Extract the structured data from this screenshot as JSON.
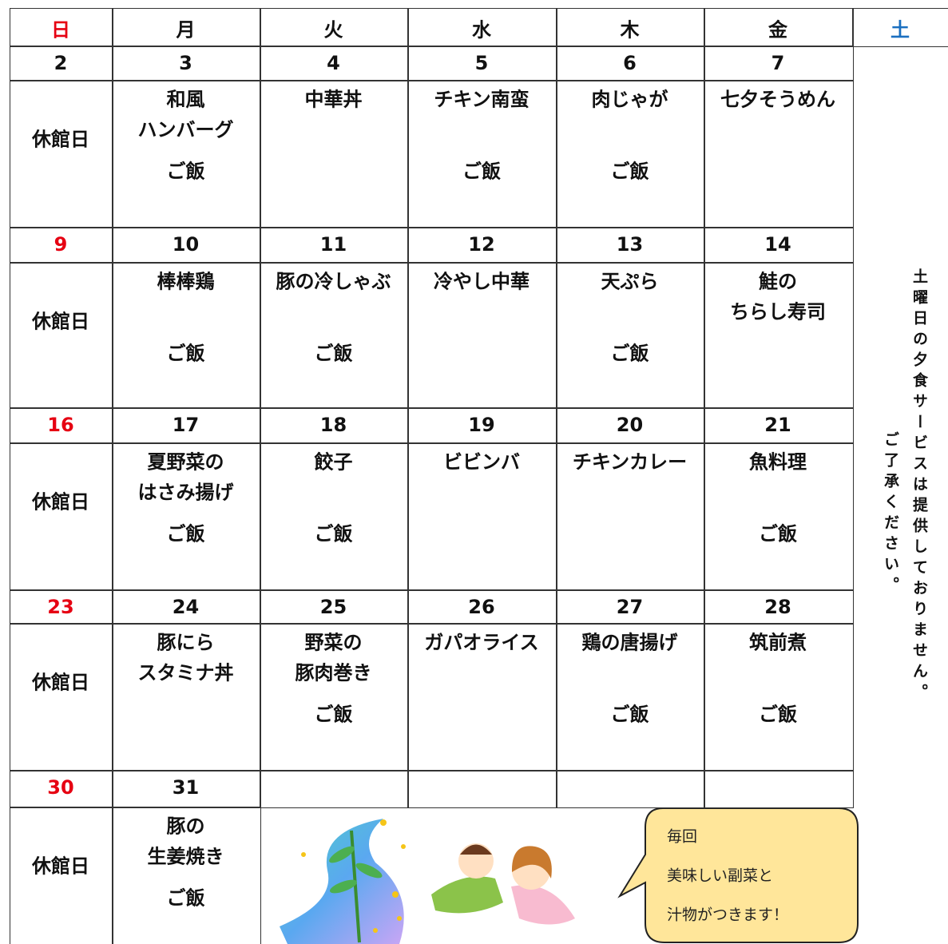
{
  "header": {
    "days": [
      {
        "label": "日",
        "color": "#e60012"
      },
      {
        "label": "月",
        "color": "#111111"
      },
      {
        "label": "火",
        "color": "#111111"
      },
      {
        "label": "水",
        "color": "#111111"
      },
      {
        "label": "木",
        "color": "#111111"
      },
      {
        "label": "金",
        "color": "#111111"
      },
      {
        "label": "土",
        "color": "#1a6fc0"
      }
    ]
  },
  "weeks": [
    {
      "sunday_color": "#111111",
      "dates": [
        2,
        3,
        4,
        5,
        6,
        7
      ],
      "cells": [
        {
          "closed": "休館日"
        },
        {
          "dish": [
            "和風",
            "ハンバーグ"
          ],
          "side": "ご飯"
        },
        {
          "dish": [
            "中華丼"
          ]
        },
        {
          "dish": [
            "チキン南蛮"
          ],
          "side": "ご飯"
        },
        {
          "dish": [
            "肉じゃが"
          ],
          "side": "ご飯"
        },
        {
          "dish": [
            "七夕そうめん"
          ]
        }
      ]
    },
    {
      "sunday_color": "#e60012",
      "dates": [
        9,
        10,
        11,
        12,
        13,
        14
      ],
      "cells": [
        {
          "closed": "休館日"
        },
        {
          "dish": [
            "棒棒鶏"
          ],
          "side": "ご飯"
        },
        {
          "dish": [
            "豚の冷しゃぶ"
          ],
          "side": "ご飯"
        },
        {
          "dish": [
            "冷やし中華"
          ]
        },
        {
          "dish": [
            "天ぷら"
          ],
          "side": "ご飯"
        },
        {
          "dish": [
            "鮭の",
            "ちらし寿司"
          ]
        }
      ]
    },
    {
      "sunday_color": "#e60012",
      "dates": [
        16,
        17,
        18,
        19,
        20,
        21
      ],
      "cells": [
        {
          "closed": "休館日"
        },
        {
          "dish": [
            "夏野菜の",
            "はさみ揚げ"
          ],
          "side": "ご飯"
        },
        {
          "dish": [
            "餃子"
          ],
          "side": "ご飯"
        },
        {
          "dish": [
            "ビビンバ"
          ]
        },
        {
          "dish": [
            "チキンカレー"
          ]
        },
        {
          "dish": [
            "魚料理"
          ],
          "side": "ご飯"
        }
      ]
    },
    {
      "sunday_color": "#e60012",
      "dates": [
        23,
        24,
        25,
        26,
        27,
        28
      ],
      "cells": [
        {
          "closed": "休館日"
        },
        {
          "dish": [
            "豚にら",
            "スタミナ丼"
          ]
        },
        {
          "dish": [
            "野菜の",
            "豚肉巻き"
          ],
          "side": "ご飯"
        },
        {
          "dish": [
            "ガパオライス"
          ]
        },
        {
          "dish": [
            "鶏の唐揚げ"
          ],
          "side": "ご飯"
        },
        {
          "dish": [
            "筑前煮"
          ],
          "side": "ご飯"
        }
      ]
    },
    {
      "sunday_color": "#e60012",
      "dates": [
        30,
        31
      ],
      "cells": [
        {
          "closed": "休館日"
        },
        {
          "dish": [
            "豚の",
            "生姜焼き"
          ],
          "side": "ご飯"
        }
      ]
    }
  ],
  "saturday_note": [
    "土曜日の夕食サービスは提供しておりません。",
    "ご了承ください。"
  ],
  "bubble": [
    "毎回",
    "美味しい副菜と",
    "汁物がつきます！"
  ]
}
